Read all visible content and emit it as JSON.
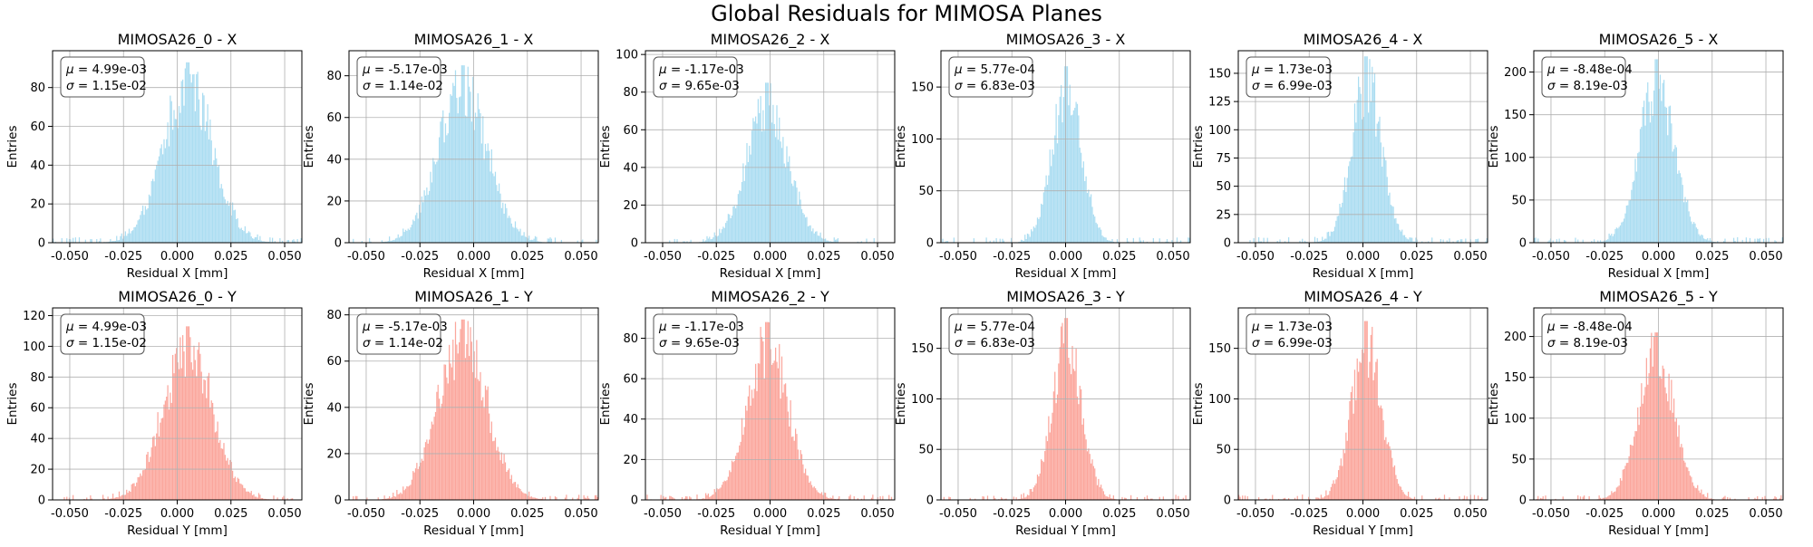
{
  "suptitle": "Global Residuals for MIMOSA Planes",
  "colors": {
    "x_fill": "#87CEEB",
    "y_fill": "#FA8072",
    "grid": "#b0b0b0",
    "axis": "#000000"
  },
  "chart_data": [
    {
      "type": "bar",
      "title": "MIMOSA26_0 - X",
      "xlabel": "Residual X [mm]",
      "ylabel": "Entries",
      "xlim": [
        -0.058,
        0.058
      ],
      "ylim": [
        0,
        99
      ],
      "xticks": [
        "-0.050",
        "-0.025",
        "0.000",
        "0.025",
        "0.050"
      ],
      "xtick_values": [
        -0.05,
        -0.025,
        0,
        0.025,
        0.05
      ],
      "yticks": [
        0,
        20,
        40,
        60,
        80
      ],
      "grid": true,
      "mu": "4.99e-03",
      "sigma": "1.15e-02",
      "peak": 93,
      "mean": 0.00499,
      "width": 0.0115,
      "color": "#87CEEB",
      "stats_legend": "top-left"
    },
    {
      "type": "bar",
      "title": "MIMOSA26_1 - X",
      "xlabel": "Residual X [mm]",
      "ylabel": "Entries",
      "xlim": [
        -0.058,
        0.058
      ],
      "ylim": [
        0,
        92
      ],
      "xticks": [
        "-0.050",
        "-0.025",
        "0.000",
        "0.025",
        "0.050"
      ],
      "xtick_values": [
        -0.05,
        -0.025,
        0,
        0.025,
        0.05
      ],
      "yticks": [
        0,
        20,
        40,
        60,
        80
      ],
      "grid": true,
      "mu": "-5.17e-03",
      "sigma": "1.14e-02",
      "peak": 85,
      "mean": -0.00517,
      "width": 0.0114,
      "color": "#87CEEB",
      "stats_legend": "top-left"
    },
    {
      "type": "bar",
      "title": "MIMOSA26_2 - X",
      "xlabel": "Residual X [mm]",
      "ylabel": "Entries",
      "xlim": [
        -0.058,
        0.058
      ],
      "ylim": [
        0,
        102
      ],
      "xticks": [
        "-0.050",
        "-0.025",
        "0.000",
        "0.025",
        "0.050"
      ],
      "xtick_values": [
        -0.05,
        -0.025,
        0,
        0.025,
        0.05
      ],
      "yticks": [
        0,
        20,
        40,
        60,
        80,
        100
      ],
      "grid": true,
      "mu": "-1.17e-03",
      "sigma": "9.65e-03",
      "peak": 85,
      "mean": -0.00117,
      "width": 0.00965,
      "color": "#87CEEB",
      "stats_legend": "top-left"
    },
    {
      "type": "bar",
      "title": "MIMOSA26_3 - X",
      "xlabel": "Residual X [mm]",
      "ylabel": "Entries",
      "xlim": [
        -0.058,
        0.058
      ],
      "ylim": [
        0,
        185
      ],
      "xticks": [
        "-0.050",
        "-0.025",
        "0.000",
        "0.025",
        "0.050"
      ],
      "xtick_values": [
        -0.05,
        -0.025,
        0,
        0.025,
        0.05
      ],
      "yticks": [
        0,
        50,
        100,
        150
      ],
      "grid": true,
      "mu": "5.77e-04",
      "sigma": "6.83e-03",
      "peak": 170,
      "mean": 0.000577,
      "width": 0.00683,
      "color": "#87CEEB",
      "stats_legend": "top-left"
    },
    {
      "type": "bar",
      "title": "MIMOSA26_4 - X",
      "xlabel": "Residual X [mm]",
      "ylabel": "Entries",
      "xlim": [
        -0.058,
        0.058
      ],
      "ylim": [
        0,
        170
      ],
      "xticks": [
        "-0.050",
        "-0.025",
        "0.000",
        "0.025",
        "0.050"
      ],
      "xtick_values": [
        -0.05,
        -0.025,
        0,
        0.025,
        0.05
      ],
      "yticks": [
        0,
        25,
        50,
        75,
        100,
        125,
        150
      ],
      "grid": true,
      "mu": "1.73e-03",
      "sigma": "6.99e-03",
      "peak": 165,
      "mean": 0.00173,
      "width": 0.00699,
      "color": "#87CEEB",
      "stats_legend": "top-left"
    },
    {
      "type": "bar",
      "title": "MIMOSA26_5 - X",
      "xlabel": "Residual X [mm]",
      "ylabel": "Entries",
      "xlim": [
        -0.058,
        0.058
      ],
      "ylim": [
        0,
        225
      ],
      "xticks": [
        "-0.050",
        "-0.025",
        "0.000",
        "0.025",
        "0.050"
      ],
      "xtick_values": [
        -0.05,
        -0.025,
        0,
        0.025,
        0.05
      ],
      "yticks": [
        0,
        50,
        100,
        150,
        200
      ],
      "grid": true,
      "mu": "-8.48e-04",
      "sigma": "8.19e-03",
      "peak": 215,
      "mean": -0.000848,
      "width": 0.00819,
      "color": "#87CEEB",
      "stats_legend": "top-left"
    },
    {
      "type": "bar",
      "title": "MIMOSA26_0 - Y",
      "xlabel": "Residual Y [mm]",
      "ylabel": "Entries",
      "xlim": [
        -0.058,
        0.058
      ],
      "ylim": [
        0,
        125
      ],
      "xticks": [
        "-0.050",
        "-0.025",
        "0.000",
        "0.025",
        "0.050"
      ],
      "xtick_values": [
        -0.05,
        -0.025,
        0,
        0.025,
        0.05
      ],
      "yticks": [
        0,
        20,
        40,
        60,
        80,
        100,
        120
      ],
      "grid": true,
      "mu": "4.99e-03",
      "sigma": "1.15e-02",
      "peak": 113,
      "mean": 0.00499,
      "width": 0.0115,
      "color": "#FA8072",
      "stats_legend": "top-left"
    },
    {
      "type": "bar",
      "title": "MIMOSA26_1 - Y",
      "xlabel": "Residual Y [mm]",
      "ylabel": "Entries",
      "xlim": [
        -0.058,
        0.058
      ],
      "ylim": [
        0,
        83
      ],
      "xticks": [
        "-0.050",
        "-0.025",
        "0.000",
        "0.025",
        "0.050"
      ],
      "xtick_values": [
        -0.05,
        -0.025,
        0,
        0.025,
        0.05
      ],
      "yticks": [
        0,
        20,
        40,
        60,
        80
      ],
      "grid": true,
      "mu": "-5.17e-03",
      "sigma": "1.14e-02",
      "peak": 78,
      "mean": -0.00517,
      "width": 0.0114,
      "color": "#FA8072",
      "stats_legend": "top-left"
    },
    {
      "type": "bar",
      "title": "MIMOSA26_2 - Y",
      "xlabel": "Residual Y [mm]",
      "ylabel": "Entries",
      "xlim": [
        -0.058,
        0.058
      ],
      "ylim": [
        0,
        95
      ],
      "xticks": [
        "-0.050",
        "-0.025",
        "0.000",
        "0.025",
        "0.050"
      ],
      "xtick_values": [
        -0.05,
        -0.025,
        0,
        0.025,
        0.05
      ],
      "yticks": [
        0,
        20,
        40,
        60,
        80
      ],
      "grid": true,
      "mu": "-1.17e-03",
      "sigma": "9.65e-03",
      "peak": 88,
      "mean": -0.00117,
      "width": 0.00965,
      "color": "#FA8072",
      "stats_legend": "top-left"
    },
    {
      "type": "bar",
      "title": "MIMOSA26_3 - Y",
      "xlabel": "Residual Y [mm]",
      "ylabel": "Entries",
      "xlim": [
        -0.058,
        0.058
      ],
      "ylim": [
        0,
        190
      ],
      "xticks": [
        "-0.050",
        "-0.025",
        "0.000",
        "0.025",
        "0.050"
      ],
      "xtick_values": [
        -0.05,
        -0.025,
        0,
        0.025,
        0.05
      ],
      "yticks": [
        0,
        50,
        100,
        150
      ],
      "grid": true,
      "mu": "5.77e-04",
      "sigma": "6.83e-03",
      "peak": 180,
      "mean": 0.000577,
      "width": 0.00683,
      "color": "#FA8072",
      "stats_legend": "top-left"
    },
    {
      "type": "bar",
      "title": "MIMOSA26_4 - Y",
      "xlabel": "Residual Y [mm]",
      "ylabel": "Entries",
      "xlim": [
        -0.058,
        0.058
      ],
      "ylim": [
        0,
        190
      ],
      "xticks": [
        "-0.050",
        "-0.025",
        "0.000",
        "0.025",
        "0.050"
      ],
      "xtick_values": [
        -0.05,
        -0.025,
        0,
        0.025,
        0.05
      ],
      "yticks": [
        0,
        50,
        100,
        150
      ],
      "grid": true,
      "mu": "1.73e-03",
      "sigma": "6.99e-03",
      "peak": 177,
      "mean": 0.00173,
      "width": 0.00699,
      "color": "#FA8072",
      "stats_legend": "top-left"
    },
    {
      "type": "bar",
      "title": "MIMOSA26_5 - Y",
      "xlabel": "Residual Y [mm]",
      "ylabel": "Entries",
      "xlim": [
        -0.058,
        0.058
      ],
      "ylim": [
        0,
        235
      ],
      "xticks": [
        "-0.050",
        "-0.025",
        "0.000",
        "0.025",
        "0.050"
      ],
      "xtick_values": [
        -0.05,
        -0.025,
        0,
        0.025,
        0.05
      ],
      "yticks": [
        0,
        50,
        100,
        150,
        200
      ],
      "grid": true,
      "mu": "-8.48e-04",
      "sigma": "8.19e-03",
      "peak": 205,
      "mean": -0.000848,
      "width": 0.00819,
      "color": "#FA8072",
      "stats_legend": "top-left"
    }
  ]
}
